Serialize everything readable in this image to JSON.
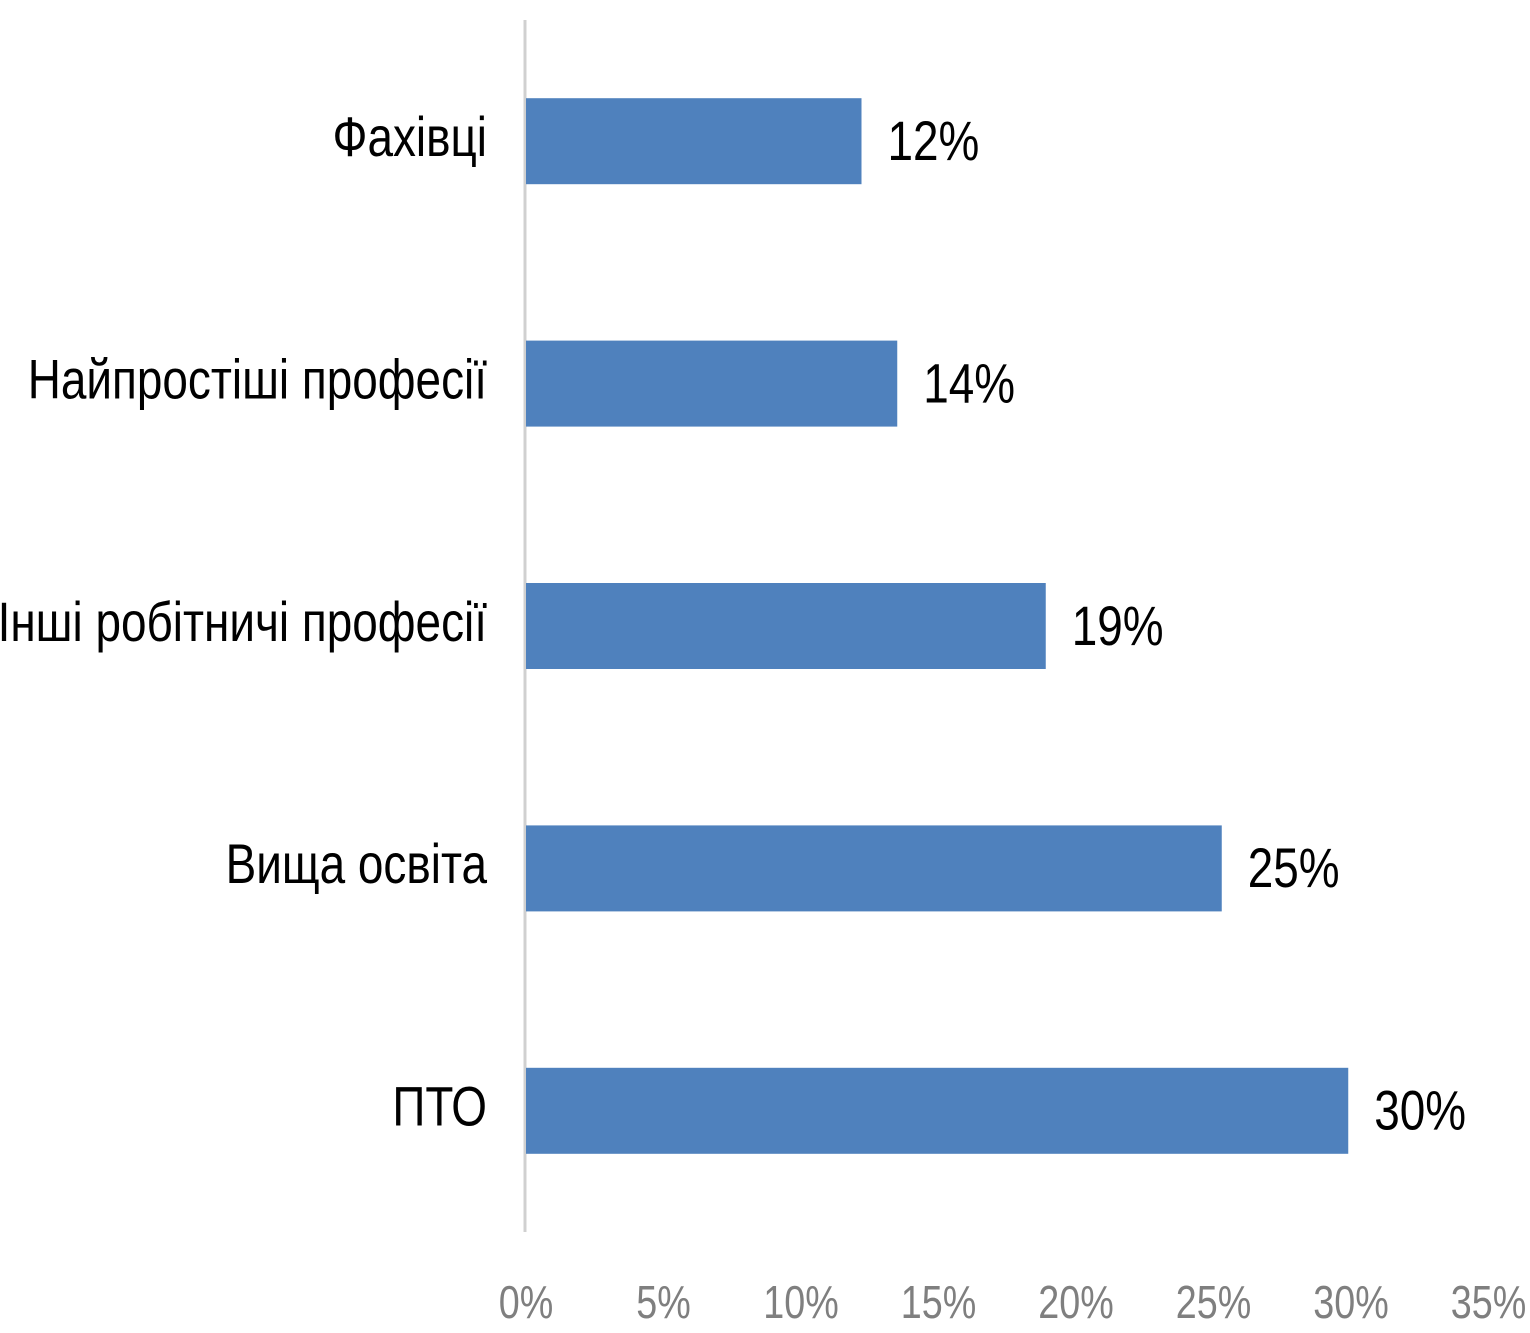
{
  "chart_data": {
    "type": "bar",
    "orientation": "horizontal",
    "categories": [
      "Фахівці",
      "Найпростіші професії",
      "Інші робітничі професії",
      "Вища освіта",
      "ПТО"
    ],
    "values": [
      12.2,
      13.5,
      18.9,
      25.3,
      29.9
    ],
    "value_labels": [
      "12%",
      "14%",
      "19%",
      "25%",
      "30%"
    ],
    "color": "#4f81bd",
    "xlim": [
      0,
      35
    ],
    "xticks": [
      {
        "value": 0,
        "label": "0%"
      },
      {
        "value": 5,
        "label": "5%"
      },
      {
        "value": 10,
        "label": "10%"
      },
      {
        "value": 15,
        "label": "15%"
      },
      {
        "value": 20,
        "label": "20%"
      },
      {
        "value": 25,
        "label": "25%"
      },
      {
        "value": 30,
        "label": "30%"
      },
      {
        "value": 35,
        "label": "35%"
      }
    ],
    "grid": false
  }
}
